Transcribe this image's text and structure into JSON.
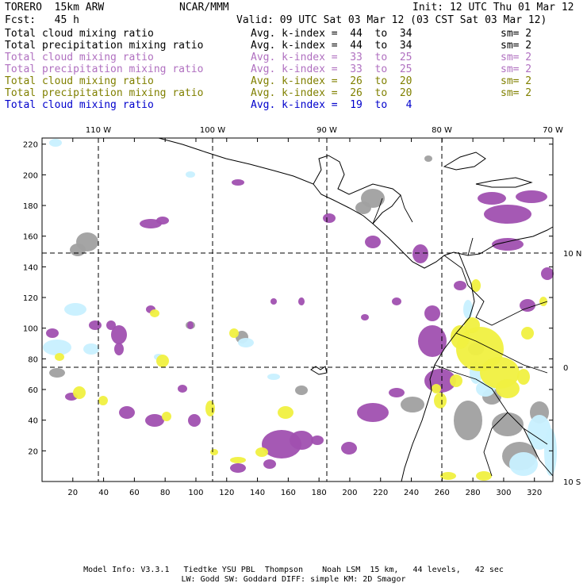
{
  "header": {
    "model": "TORERO  15km ARW",
    "org": "NCAR/MMM",
    "init": "Init: 12 UTC Thu 01 Mar 12",
    "fcst": "Fcst:   45 h",
    "valid": "Valid: 09 UTC Sat 03 Mar 12 (03 CST Sat 03 Mar 12)"
  },
  "legend": [
    {
      "field": "Total cloud mixing ratio",
      "kindex": "Avg. k-index =  44  to  34",
      "sm": "sm= 2",
      "color": "#000000"
    },
    {
      "field": "Total precipitation mixing ratio",
      "kindex": "Avg. k-index =  44  to  34",
      "sm": "sm= 2",
      "color": "#000000"
    },
    {
      "field": "Total cloud mixing ratio",
      "kindex": "Avg. k-index =  33  to  25",
      "sm": "sm= 2",
      "color": "#b070c0"
    },
    {
      "field": "Total precipitation mixing ratio",
      "kindex": "Avg. k-index =  33  to  25",
      "sm": "sm= 2",
      "color": "#b070c0"
    },
    {
      "field": "Total cloud mixing ratio",
      "kindex": "Avg. k-index =  26  to  20",
      "sm": "sm= 2",
      "color": "#808000"
    },
    {
      "field": "Total precipitation mixing ratio",
      "kindex": "Avg. k-index =  26  to  20",
      "sm": "sm= 2",
      "color": "#808000"
    },
    {
      "field": "Total cloud mixing ratio",
      "kindex": "Avg. k-index =  19  to   4",
      "sm": "",
      "color": "#0000cc"
    }
  ],
  "map": {
    "lon_labels": [
      "110 W",
      "100 W",
      "90 W",
      "80 W",
      "70 W"
    ],
    "lat_labels": [
      "10 N",
      "0",
      "10 S"
    ],
    "y_ticks": [
      "20",
      "40",
      "60",
      "80",
      "100",
      "120",
      "140",
      "160",
      "180",
      "200",
      "220"
    ],
    "x_ticks": [
      "20",
      "40",
      "60",
      "80",
      "100",
      "120",
      "140",
      "160",
      "180",
      "200",
      "220",
      "240",
      "260",
      "280",
      "300",
      "320"
    ],
    "colors": {
      "cloud_high": "#a0a0a0",
      "precip_high": "#c8f0ff",
      "cloud_mid": "#a050b0",
      "precip_mid": "#f0f040",
      "coast": "#000000",
      "grid": "#000000"
    }
  },
  "footer": {
    "line1": "Model Info: V3.3.1   Tiedtke YSU PBL  Thompson    Noah LSM  15 km,   44 levels,   42 sec",
    "line2": "LW: Godd SW: Goddard DIFF: simple KM: 2D Smagor"
  }
}
